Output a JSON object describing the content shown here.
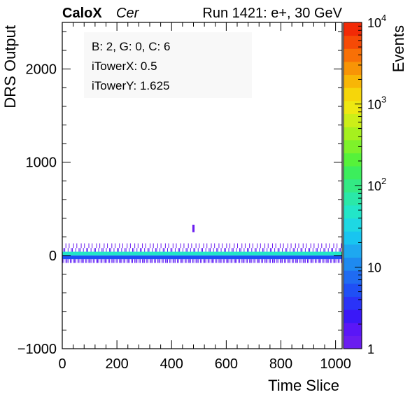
{
  "header": {
    "brand": "CaloX",
    "channel": "Cer",
    "run_label": "Run 1421: e+, 30 GeV"
  },
  "info_box": {
    "lines": [
      "B: 2, G: 0, C: 6",
      "iTowerX: 0.5",
      "iTowerY: 1.625"
    ]
  },
  "chart_data": {
    "type": "heatmap",
    "xlabel": "Time Slice",
    "ylabel": "DRS Output",
    "zlabel": "Events",
    "xlim": [
      0,
      1024
    ],
    "ylim": [
      -1000,
      2500
    ],
    "x_ticks": [
      0,
      200,
      400,
      600,
      800,
      1000
    ],
    "y_ticks": [
      -1000,
      0,
      1000,
      2000
    ],
    "z_scale": "log",
    "zlim": [
      1,
      10000
    ],
    "z_ticks": [
      {
        "value": 1,
        "label": "1"
      },
      {
        "value": 10,
        "label": "10"
      },
      {
        "value": 100,
        "label": "10",
        "exp": "2"
      },
      {
        "value": 1000,
        "label": "10",
        "exp": "3"
      },
      {
        "value": 10000,
        "label": "10",
        "exp": "4"
      }
    ],
    "palette": [
      "#6a1df0",
      "#5a16f7",
      "#3a18f7",
      "#2a33f7",
      "#1f4ff5",
      "#1f6bf2",
      "#1e8af0",
      "#1ea8f0",
      "#18c5f0",
      "#1ed8e3",
      "#22e6c8",
      "#2ae8a8",
      "#33ea84",
      "#3cee5c",
      "#56f23a",
      "#7ef22a",
      "#a6f01e",
      "#ccee18",
      "#eee812",
      "#f6d60a",
      "#f8b606",
      "#f89406",
      "#f87006",
      "#f64a06",
      "#f22a06"
    ],
    "bands": [
      {
        "y": [
          0,
          40
        ],
        "events": 40
      },
      {
        "y": [
          -40,
          0
        ],
        "events": 6
      },
      {
        "y": [
          -80,
          -40
        ],
        "events": 1.5
      },
      {
        "y": [
          40,
          80
        ],
        "events": 1.8
      },
      {
        "y": [
          80,
          130
        ],
        "events": 1.2
      }
    ],
    "spike": {
      "x": [
        476,
        484
      ],
      "y": [
        250,
        330
      ],
      "events": 1
    }
  }
}
